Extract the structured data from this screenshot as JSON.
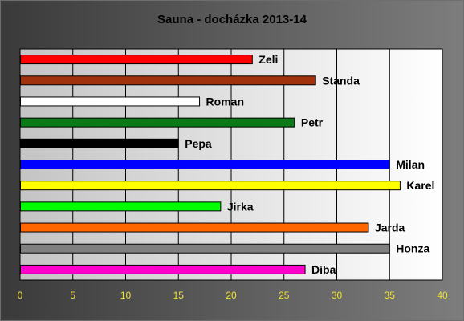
{
  "chart_data": {
    "type": "bar",
    "orientation": "horizontal",
    "title": "Sauna - docházka 2013-14",
    "xlabel": "",
    "ylabel": "",
    "xlim": [
      0,
      40
    ],
    "ticks": [
      "0",
      "5",
      "10",
      "15",
      "20",
      "25",
      "30",
      "35",
      "40"
    ],
    "grid": true,
    "legend": "none",
    "bars": [
      {
        "name": "Zeli",
        "value": 22,
        "color": "#ff0000"
      },
      {
        "name": "Standa",
        "value": 28,
        "color": "#a0330d"
      },
      {
        "name": "Roman",
        "value": 17,
        "color": "#ffffff"
      },
      {
        "name": "Petr",
        "value": 26,
        "color": "#0a7a16"
      },
      {
        "name": "Pepa",
        "value": 15,
        "color": "#000000"
      },
      {
        "name": "Milan",
        "value": 35,
        "color": "#0000ff"
      },
      {
        "name": "Karel",
        "value": 36,
        "color": "#ffff00"
      },
      {
        "name": "Jirka",
        "value": 19,
        "color": "#00ff00"
      },
      {
        "name": "Jarda",
        "value": 33,
        "color": "#ff6600"
      },
      {
        "name": "Honza",
        "value": 35,
        "color": "#808080"
      },
      {
        "name": "Díba",
        "value": 27,
        "color": "#ff00cc"
      }
    ]
  }
}
